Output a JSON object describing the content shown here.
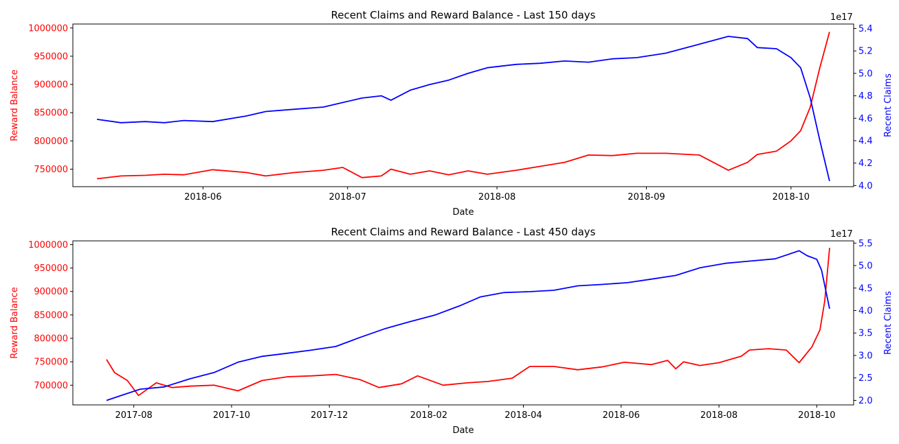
{
  "chart_data": [
    {
      "type": "line",
      "title": "Recent Claims and Reward Balance - Last 150 days",
      "xlabel": "Date",
      "ylabel_left": "Reward Balance",
      "ylabel_right": "Recent Claims",
      "right_offset_label": "1e17",
      "x_ticks": [
        "2018-06",
        "2018-07",
        "2018-08",
        "2018-09",
        "2018-10"
      ],
      "y_left_ticks": [
        "750000",
        "800000",
        "850000",
        "900000",
        "950000",
        "1000000"
      ],
      "y_right_ticks": [
        "4.0",
        "4.2",
        "4.4",
        "4.6",
        "4.8",
        "5.0",
        "5.2",
        "5.4"
      ],
      "xlim": [
        "2018-05-05",
        "2018-10-14"
      ],
      "ylim_left": [
        719000,
        1007000
      ],
      "ylim_right": [
        3.99,
        5.44
      ],
      "grid": false,
      "series": [
        {
          "name": "Reward Balance",
          "axis": "left",
          "color": "#ff0000",
          "points": [
            [
              "2018-05-10",
              733000
            ],
            [
              "2018-05-15",
              738000
            ],
            [
              "2018-05-20",
              739000
            ],
            [
              "2018-05-24",
              741000
            ],
            [
              "2018-05-28",
              740000
            ],
            [
              "2018-06-03",
              749000
            ],
            [
              "2018-06-10",
              744000
            ],
            [
              "2018-06-14",
              738000
            ],
            [
              "2018-06-20",
              744000
            ],
            [
              "2018-06-26",
              748000
            ],
            [
              "2018-06-30",
              753000
            ],
            [
              "2018-07-04",
              735000
            ],
            [
              "2018-07-08",
              738000
            ],
            [
              "2018-07-10",
              750000
            ],
            [
              "2018-07-14",
              741000
            ],
            [
              "2018-07-18",
              747000
            ],
            [
              "2018-07-22",
              740000
            ],
            [
              "2018-07-26",
              747000
            ],
            [
              "2018-07-30",
              741000
            ],
            [
              "2018-08-05",
              748000
            ],
            [
              "2018-08-10",
              755000
            ],
            [
              "2018-08-15",
              762000
            ],
            [
              "2018-08-20",
              775000
            ],
            [
              "2018-08-25",
              774000
            ],
            [
              "2018-08-30",
              778000
            ],
            [
              "2018-09-05",
              778000
            ],
            [
              "2018-09-12",
              775000
            ],
            [
              "2018-09-18",
              748000
            ],
            [
              "2018-09-22",
              762000
            ],
            [
              "2018-09-24",
              776000
            ],
            [
              "2018-09-28",
              782000
            ],
            [
              "2018-10-01",
              800000
            ],
            [
              "2018-10-03",
              818000
            ],
            [
              "2018-10-05",
              860000
            ],
            [
              "2018-10-07",
              930000
            ],
            [
              "2018-10-09",
              993000
            ]
          ]
        },
        {
          "name": "Recent Claims",
          "axis": "right",
          "color": "#0000ff",
          "points": [
            [
              "2018-05-10",
              4.59
            ],
            [
              "2018-05-15",
              4.56
            ],
            [
              "2018-05-20",
              4.57
            ],
            [
              "2018-05-24",
              4.56
            ],
            [
              "2018-05-28",
              4.58
            ],
            [
              "2018-06-03",
              4.57
            ],
            [
              "2018-06-10",
              4.62
            ],
            [
              "2018-06-14",
              4.66
            ],
            [
              "2018-06-20",
              4.68
            ],
            [
              "2018-06-26",
              4.7
            ],
            [
              "2018-06-30",
              4.74
            ],
            [
              "2018-07-04",
              4.78
            ],
            [
              "2018-07-08",
              4.8
            ],
            [
              "2018-07-10",
              4.76
            ],
            [
              "2018-07-14",
              4.85
            ],
            [
              "2018-07-18",
              4.9
            ],
            [
              "2018-07-22",
              4.94
            ],
            [
              "2018-07-26",
              5.0
            ],
            [
              "2018-07-30",
              5.05
            ],
            [
              "2018-08-05",
              5.08
            ],
            [
              "2018-08-10",
              5.09
            ],
            [
              "2018-08-15",
              5.11
            ],
            [
              "2018-08-20",
              5.1
            ],
            [
              "2018-08-25",
              5.13
            ],
            [
              "2018-08-30",
              5.14
            ],
            [
              "2018-09-05",
              5.18
            ],
            [
              "2018-09-12",
              5.26
            ],
            [
              "2018-09-18",
              5.33
            ],
            [
              "2018-09-22",
              5.31
            ],
            [
              "2018-09-24",
              5.23
            ],
            [
              "2018-09-28",
              5.22
            ],
            [
              "2018-10-01",
              5.14
            ],
            [
              "2018-10-03",
              5.05
            ],
            [
              "2018-10-05",
              4.78
            ],
            [
              "2018-10-07",
              4.4
            ],
            [
              "2018-10-09",
              4.04
            ]
          ]
        }
      ]
    },
    {
      "type": "line",
      "title": "Recent Claims and Reward Balance - Last 450 days",
      "xlabel": "Date",
      "ylabel_left": "Reward Balance",
      "ylabel_right": "Recent Claims",
      "right_offset_label": "1e17",
      "x_ticks": [
        "2017-08",
        "2017-10",
        "2017-12",
        "2018-02",
        "2018-04",
        "2018-06",
        "2018-08",
        "2018-10"
      ],
      "y_left_ticks": [
        "700000",
        "750000",
        "800000",
        "850000",
        "900000",
        "950000",
        "1000000"
      ],
      "y_right_ticks": [
        "2.0",
        "2.5",
        "3.0",
        "3.5",
        "4.0",
        "4.5",
        "5.0",
        "5.5"
      ],
      "xlim": [
        "2017-06-24",
        "2018-10-24"
      ],
      "ylim_left": [
        658000,
        1008000
      ],
      "ylim_right": [
        1.9,
        5.55
      ],
      "grid": false,
      "series": [
        {
          "name": "Reward Balance",
          "axis": "left",
          "color": "#ff0000",
          "points": [
            [
              "2017-07-15",
              755000
            ],
            [
              "2017-07-20",
              727000
            ],
            [
              "2017-07-28",
              710000
            ],
            [
              "2017-08-04",
              678000
            ],
            [
              "2017-08-15",
              705000
            ],
            [
              "2017-08-25",
              695000
            ],
            [
              "2017-09-05",
              698000
            ],
            [
              "2017-09-20",
              700000
            ],
            [
              "2017-10-05",
              688000
            ],
            [
              "2017-10-20",
              710000
            ],
            [
              "2017-11-05",
              718000
            ],
            [
              "2017-11-20",
              720000
            ],
            [
              "2017-12-05",
              723000
            ],
            [
              "2017-12-20",
              712000
            ],
            [
              "2018-01-01",
              695000
            ],
            [
              "2018-01-15",
              703000
            ],
            [
              "2018-01-25",
              720000
            ],
            [
              "2018-02-10",
              700000
            ],
            [
              "2018-02-25",
              705000
            ],
            [
              "2018-03-10",
              708000
            ],
            [
              "2018-03-25",
              715000
            ],
            [
              "2018-04-05",
              740000
            ],
            [
              "2018-04-20",
              740000
            ],
            [
              "2018-05-05",
              733000
            ],
            [
              "2018-05-20",
              739000
            ],
            [
              "2018-06-03",
              749000
            ],
            [
              "2018-06-20",
              744000
            ],
            [
              "2018-06-30",
              753000
            ],
            [
              "2018-07-05",
              735000
            ],
            [
              "2018-07-10",
              750000
            ],
            [
              "2018-07-20",
              742000
            ],
            [
              "2018-08-01",
              748000
            ],
            [
              "2018-08-15",
              762000
            ],
            [
              "2018-08-20",
              775000
            ],
            [
              "2018-09-01",
              778000
            ],
            [
              "2018-09-12",
              775000
            ],
            [
              "2018-09-20",
              748000
            ],
            [
              "2018-09-28",
              782000
            ],
            [
              "2018-10-03",
              818000
            ],
            [
              "2018-10-06",
              880000
            ],
            [
              "2018-10-09",
              993000
            ]
          ]
        },
        {
          "name": "Recent Claims",
          "axis": "right",
          "color": "#0000ff",
          "points": [
            [
              "2017-07-15",
              2.0
            ],
            [
              "2017-07-25",
              2.12
            ],
            [
              "2017-08-05",
              2.25
            ],
            [
              "2017-08-20",
              2.3
            ],
            [
              "2017-09-05",
              2.48
            ],
            [
              "2017-09-20",
              2.62
            ],
            [
              "2017-10-05",
              2.85
            ],
            [
              "2017-10-20",
              2.98
            ],
            [
              "2017-11-05",
              3.05
            ],
            [
              "2017-11-20",
              3.12
            ],
            [
              "2017-12-05",
              3.2
            ],
            [
              "2017-12-20",
              3.4
            ],
            [
              "2018-01-05",
              3.6
            ],
            [
              "2018-01-20",
              3.75
            ],
            [
              "2018-02-05",
              3.9
            ],
            [
              "2018-02-20",
              4.1
            ],
            [
              "2018-03-05",
              4.3
            ],
            [
              "2018-03-20",
              4.4
            ],
            [
              "2018-04-05",
              4.42
            ],
            [
              "2018-04-20",
              4.45
            ],
            [
              "2018-05-05",
              4.55
            ],
            [
              "2018-05-20",
              4.58
            ],
            [
              "2018-06-05",
              4.62
            ],
            [
              "2018-06-20",
              4.7
            ],
            [
              "2018-07-05",
              4.78
            ],
            [
              "2018-07-20",
              4.95
            ],
            [
              "2018-08-05",
              5.05
            ],
            [
              "2018-08-20",
              5.1
            ],
            [
              "2018-09-05",
              5.15
            ],
            [
              "2018-09-20",
              5.33
            ],
            [
              "2018-09-25",
              5.22
            ],
            [
              "2018-10-01",
              5.14
            ],
            [
              "2018-10-04",
              4.9
            ],
            [
              "2018-10-09",
              4.04
            ]
          ]
        }
      ]
    }
  ]
}
